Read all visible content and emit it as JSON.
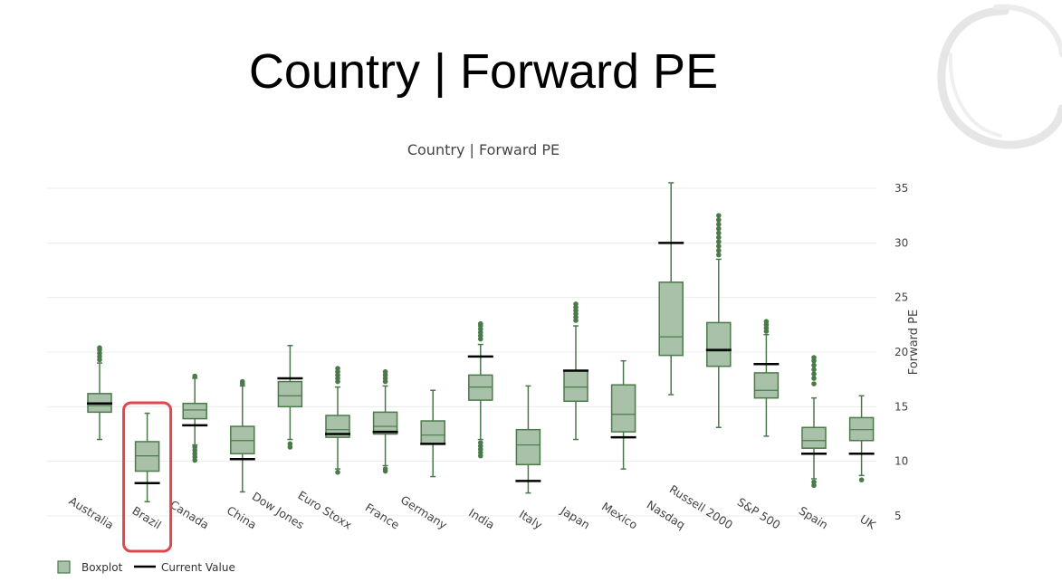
{
  "slide": {
    "title": "Country | Forward PE"
  },
  "highlight": {
    "category": "Brazil",
    "color": "#e0474c"
  },
  "chart_data": {
    "type": "box",
    "title": "Country | Forward PE",
    "ylabel": "Forward PE",
    "xlabel": "",
    "ylim": [
      5,
      36
    ],
    "yticks": [
      5,
      10,
      15,
      20,
      25,
      30,
      35
    ],
    "grid": true,
    "legend": {
      "position": "bottom-left",
      "entries": [
        "Boxplot",
        "Current Value"
      ]
    },
    "colors": {
      "box_fill": "#a9c1a9",
      "box_line": "#4a7a4a",
      "current": "#000000",
      "grid": "#ececec"
    },
    "categories": [
      "Australia",
      "Brazil",
      "Canada",
      "China",
      "Dow Jones",
      "Euro Stoxx",
      "France",
      "Germany",
      "India",
      "Italy",
      "Japan",
      "Mexico",
      "Nasdaq",
      "Russell 2000",
      "S&P 500",
      "Spain",
      "UK"
    ],
    "series": [
      {
        "name": "Australia",
        "min": 12.0,
        "q1": 14.5,
        "median": 15.1,
        "q3": 16.2,
        "max": 19.0,
        "outliers": [
          19.3,
          19.6,
          19.9,
          20.2,
          20.4
        ],
        "current": 15.3
      },
      {
        "name": "Brazil",
        "min": 6.3,
        "q1": 9.1,
        "median": 10.5,
        "q3": 11.8,
        "max": 14.4,
        "outliers": [],
        "current": 8.0
      },
      {
        "name": "Canada",
        "min": 11.5,
        "q1": 13.9,
        "median": 14.7,
        "q3": 15.3,
        "max": 17.6,
        "outliers": [
          10.1,
          10.4,
          10.7,
          11.0,
          11.3,
          17.8
        ],
        "current": 13.3
      },
      {
        "name": "China",
        "min": 7.2,
        "q1": 10.7,
        "median": 11.9,
        "q3": 13.2,
        "max": 16.9,
        "outliers": [
          17.1,
          17.3
        ],
        "current": 10.2
      },
      {
        "name": "Dow Jones",
        "min": 12.0,
        "q1": 15.0,
        "median": 16.0,
        "q3": 17.3,
        "max": 20.6,
        "outliers": [
          11.3,
          11.6
        ],
        "current": 17.6
      },
      {
        "name": "Euro Stoxx",
        "min": 9.3,
        "q1": 12.2,
        "median": 12.9,
        "q3": 14.2,
        "max": 16.8,
        "outliers": [
          9.0,
          17.3,
          17.6,
          17.9,
          18.2,
          18.5
        ],
        "current": 12.5
      },
      {
        "name": "France",
        "min": 9.6,
        "q1": 12.5,
        "median": 13.2,
        "q3": 14.5,
        "max": 16.9,
        "outliers": [
          9.1,
          9.3,
          17.3,
          17.6,
          17.9,
          18.2
        ],
        "current": 12.7
      },
      {
        "name": "Germany",
        "min": 8.6,
        "q1": 11.6,
        "median": 12.4,
        "q3": 13.7,
        "max": 16.5,
        "outliers": [],
        "current": 11.6
      },
      {
        "name": "India",
        "min": 12.0,
        "q1": 15.6,
        "median": 16.8,
        "q3": 17.9,
        "max": 20.7,
        "outliers": [
          10.5,
          10.8,
          11.1,
          11.4,
          11.7,
          21.2,
          21.5,
          21.8,
          22.1,
          22.4,
          22.6
        ],
        "current": 19.6
      },
      {
        "name": "Italy",
        "min": 7.1,
        "q1": 9.7,
        "median": 11.5,
        "q3": 12.9,
        "max": 16.9,
        "outliers": [],
        "current": 8.2
      },
      {
        "name": "Japan",
        "min": 12.0,
        "q1": 15.5,
        "median": 16.8,
        "q3": 18.3,
        "max": 22.4,
        "outliers": [
          22.9,
          23.2,
          23.5,
          23.8,
          24.1,
          24.4
        ],
        "current": 18.3
      },
      {
        "name": "Mexico",
        "min": 9.3,
        "q1": 12.7,
        "median": 14.3,
        "q3": 17.0,
        "max": 19.2,
        "outliers": [],
        "current": 12.2
      },
      {
        "name": "Nasdaq",
        "min": 16.1,
        "q1": 19.7,
        "median": 21.4,
        "q3": 26.4,
        "max": 35.5,
        "outliers": [],
        "current": 30.0
      },
      {
        "name": "Russell 2000",
        "min": 13.1,
        "q1": 18.7,
        "median": 20.1,
        "q3": 22.7,
        "max": 28.5,
        "outliers": [
          28.9,
          29.3,
          29.7,
          30.1,
          30.5,
          30.9,
          31.3,
          31.7,
          32.1,
          32.5
        ],
        "current": 20.2
      },
      {
        "name": "S&P 500",
        "min": 12.3,
        "q1": 15.8,
        "median": 16.5,
        "q3": 18.1,
        "max": 21.6,
        "outliers": [
          21.9,
          22.2,
          22.5,
          22.8
        ],
        "current": 18.9
      },
      {
        "name": "Spain",
        "min": 8.4,
        "q1": 11.2,
        "median": 11.9,
        "q3": 13.1,
        "max": 15.8,
        "outliers": [
          7.8,
          8.1,
          17.1,
          17.6,
          18.0,
          18.4,
          18.8,
          19.2,
          19.5
        ],
        "current": 10.7
      },
      {
        "name": "UK",
        "min": 8.7,
        "q1": 11.9,
        "median": 12.9,
        "q3": 14.0,
        "max": 16.0,
        "outliers": [
          8.3
        ],
        "current": 10.7
      }
    ]
  }
}
